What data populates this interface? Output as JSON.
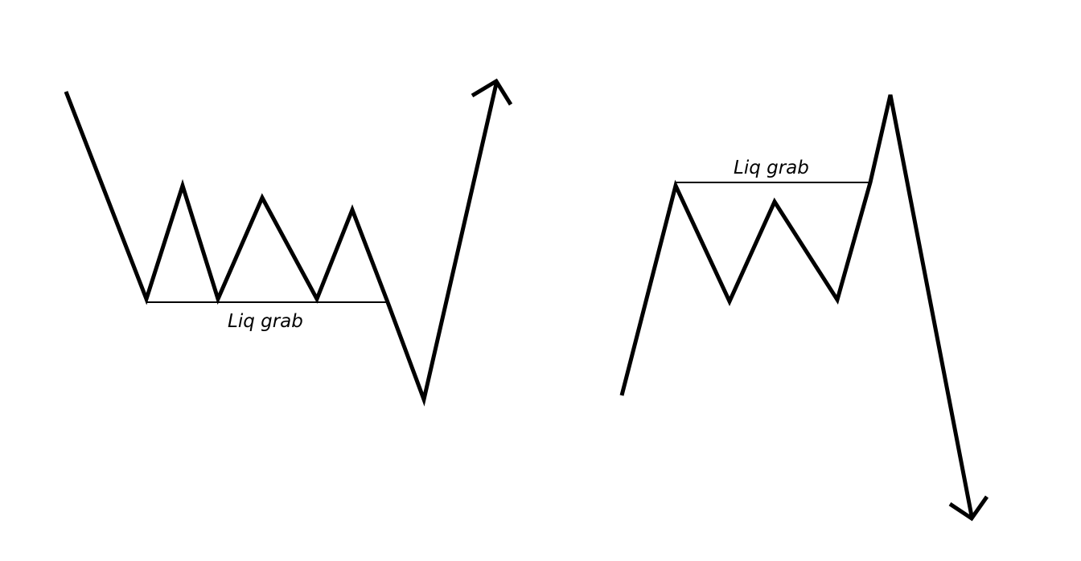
{
  "diagrams": [
    {
      "id": "bullish",
      "label": "Liq grab"
    },
    {
      "id": "bearish",
      "label": "Liq grab"
    }
  ],
  "colors": {
    "background": "#ffffff",
    "line": "#000000"
  }
}
